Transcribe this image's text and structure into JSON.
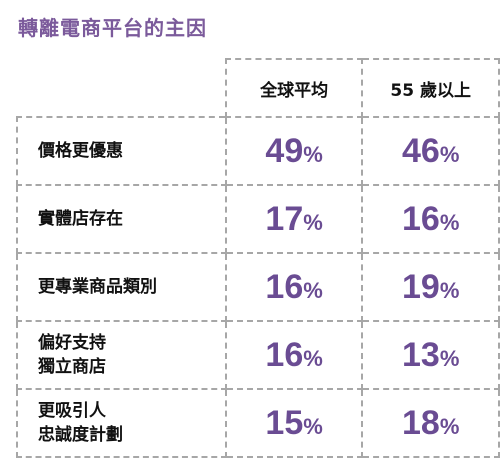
{
  "title": "轉離電商平台的主因",
  "chart_data": {
    "type": "table",
    "title": "轉離電商平台的主因",
    "columns": [
      "全球平均",
      "55 歲以上"
    ],
    "unit": "%",
    "rows": [
      {
        "label_lines": [
          "價格更優惠"
        ],
        "values": [
          49,
          46
        ]
      },
      {
        "label_lines": [
          "實體店存在"
        ],
        "values": [
          17,
          16
        ]
      },
      {
        "label_lines": [
          "更專業商品類別"
        ],
        "values": [
          16,
          19
        ]
      },
      {
        "label_lines": [
          "偏好支持",
          "獨立商店"
        ],
        "values": [
          16,
          13
        ]
      },
      {
        "label_lines": [
          "更吸引人",
          "忠誠度計劃"
        ],
        "values": [
          15,
          18
        ]
      }
    ]
  },
  "colors": {
    "title": "#7b5a9b",
    "value": "#6a4c93",
    "border": "#a7a7a7"
  }
}
